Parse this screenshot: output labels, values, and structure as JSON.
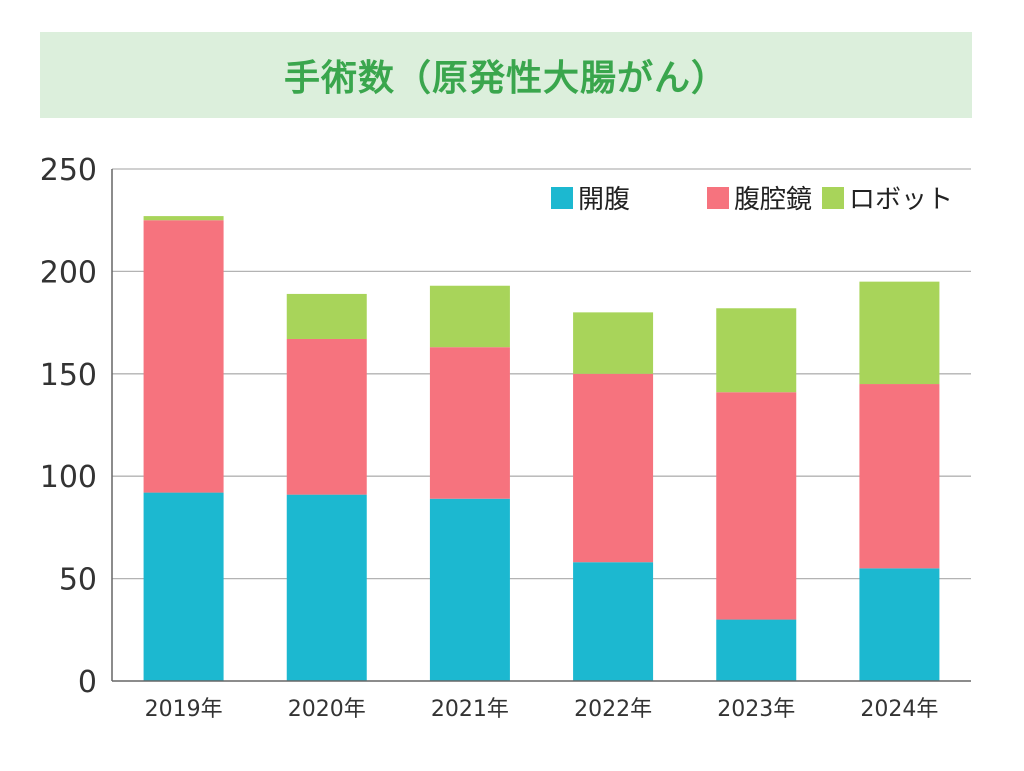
{
  "chart_data": {
    "type": "bar",
    "stacked": true,
    "title": "手術数（原発性大腸がん）",
    "categories": [
      "2019年",
      "2020年",
      "2021年",
      "2022年",
      "2023年",
      "2024年"
    ],
    "series": [
      {
        "name": "開腹",
        "color": "#1cb8d0",
        "values": [
          92,
          91,
          89,
          58,
          30,
          55
        ]
      },
      {
        "name": "腹腔鏡",
        "color": "#f6737e",
        "values": [
          133,
          76,
          74,
          92,
          111,
          90
        ]
      },
      {
        "name": "ロボット",
        "color": "#a8d45a",
        "values": [
          2,
          22,
          30,
          30,
          41,
          50
        ]
      }
    ],
    "ylim": [
      0,
      250
    ],
    "yticks": [
      0,
      50,
      100,
      150,
      200,
      250
    ],
    "xlabel": "",
    "ylabel": "",
    "grid": true,
    "legend_position": "top-right"
  }
}
